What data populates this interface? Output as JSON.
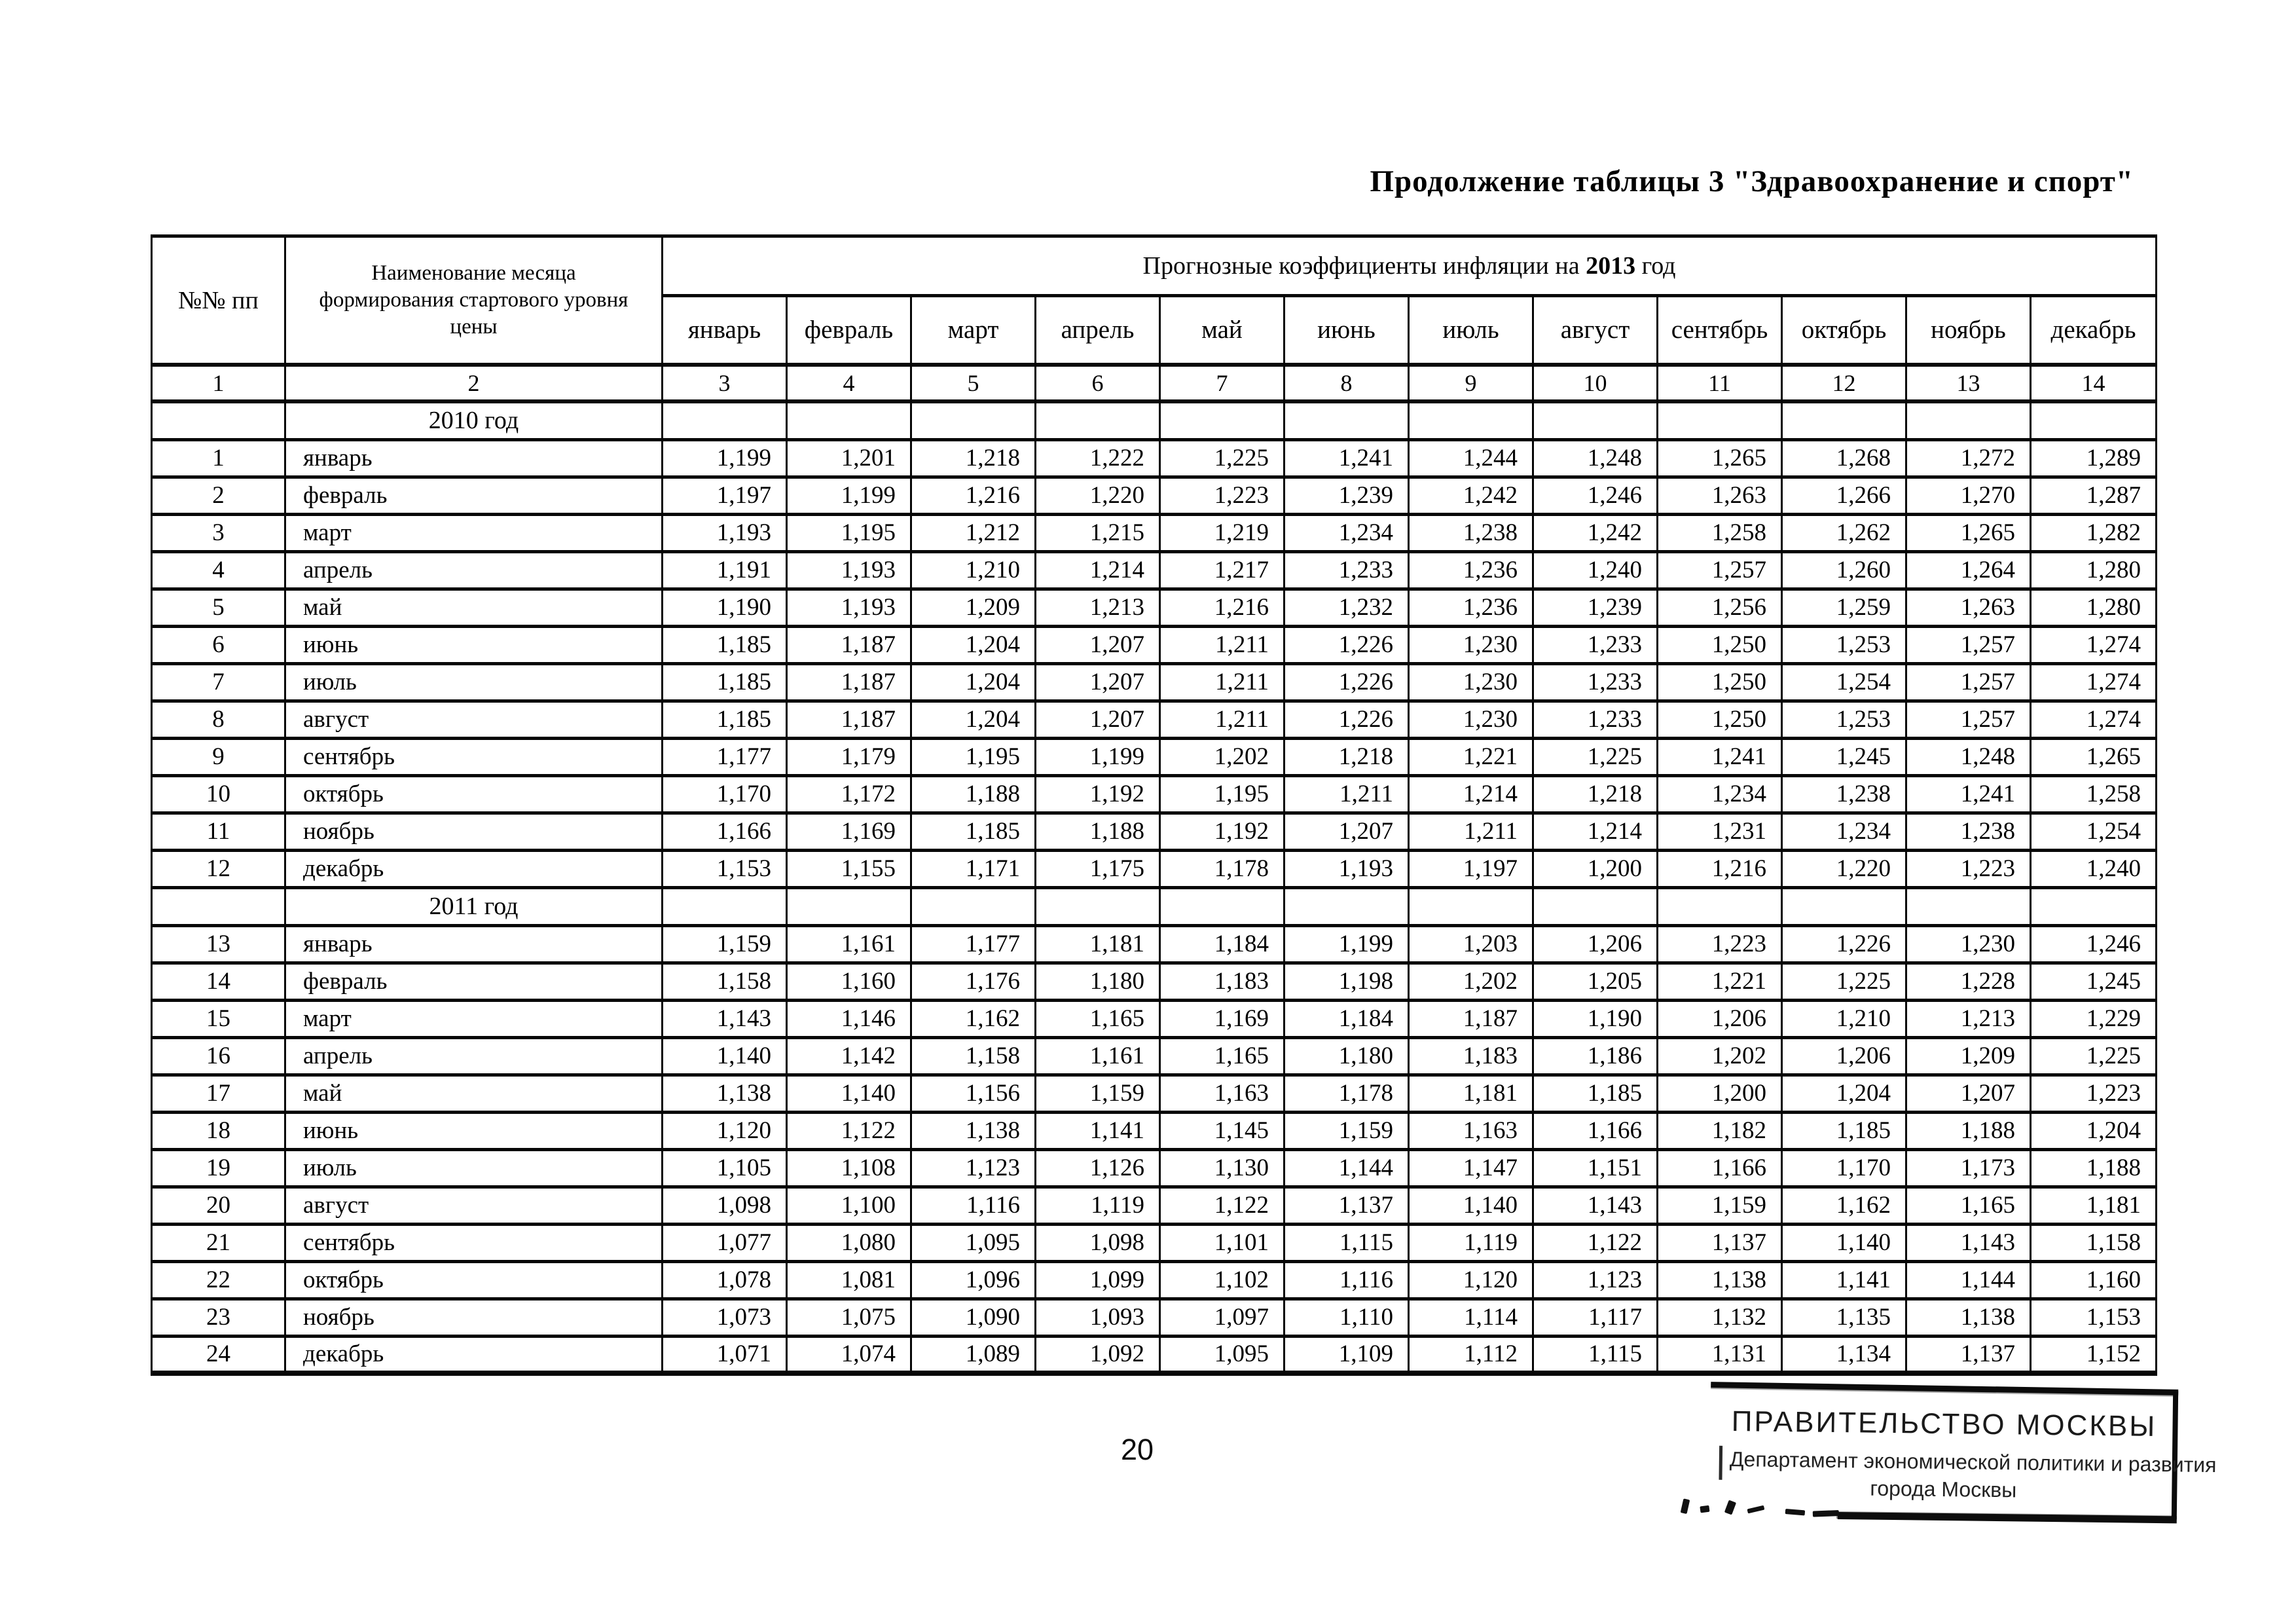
{
  "title": "Продолжение таблицы 3 \"Здравоохранение и спорт\"",
  "page_number": "20",
  "table": {
    "header": {
      "pp": "№№ пп",
      "month_name": "Наименование месяца формирования стартового уровня цены",
      "span_prefix": "Прогнозные коэффициенты инфляции на",
      "span_year": "2013",
      "span_suffix": "год",
      "months": [
        "январь",
        "февраль",
        "март",
        "апрель",
        "май",
        "июнь",
        "июль",
        "август",
        "сентябрь",
        "октябрь",
        "ноябрь",
        "декабрь"
      ],
      "column_numbers": [
        "1",
        "2",
        "3",
        "4",
        "5",
        "6",
        "7",
        "8",
        "9",
        "10",
        "11",
        "12",
        "13",
        "14"
      ]
    },
    "sections": [
      {
        "year_label": "2010 год",
        "rows": [
          {
            "num": "1",
            "month": "январь",
            "values": [
              "1,199",
              "1,201",
              "1,218",
              "1,222",
              "1,225",
              "1,241",
              "1,244",
              "1,248",
              "1,265",
              "1,268",
              "1,272",
              "1,289"
            ]
          },
          {
            "num": "2",
            "month": "февраль",
            "values": [
              "1,197",
              "1,199",
              "1,216",
              "1,220",
              "1,223",
              "1,239",
              "1,242",
              "1,246",
              "1,263",
              "1,266",
              "1,270",
              "1,287"
            ]
          },
          {
            "num": "3",
            "month": "март",
            "values": [
              "1,193",
              "1,195",
              "1,212",
              "1,215",
              "1,219",
              "1,234",
              "1,238",
              "1,242",
              "1,258",
              "1,262",
              "1,265",
              "1,282"
            ]
          },
          {
            "num": "4",
            "month": "апрель",
            "values": [
              "1,191",
              "1,193",
              "1,210",
              "1,214",
              "1,217",
              "1,233",
              "1,236",
              "1,240",
              "1,257",
              "1,260",
              "1,264",
              "1,280"
            ]
          },
          {
            "num": "5",
            "month": "май",
            "values": [
              "1,190",
              "1,193",
              "1,209",
              "1,213",
              "1,216",
              "1,232",
              "1,236",
              "1,239",
              "1,256",
              "1,259",
              "1,263",
              "1,280"
            ]
          },
          {
            "num": "6",
            "month": "июнь",
            "values": [
              "1,185",
              "1,187",
              "1,204",
              "1,207",
              "1,211",
              "1,226",
              "1,230",
              "1,233",
              "1,250",
              "1,253",
              "1,257",
              "1,274"
            ]
          },
          {
            "num": "7",
            "month": "июль",
            "values": [
              "1,185",
              "1,187",
              "1,204",
              "1,207",
              "1,211",
              "1,226",
              "1,230",
              "1,233",
              "1,250",
              "1,254",
              "1,257",
              "1,274"
            ]
          },
          {
            "num": "8",
            "month": "август",
            "values": [
              "1,185",
              "1,187",
              "1,204",
              "1,207",
              "1,211",
              "1,226",
              "1,230",
              "1,233",
              "1,250",
              "1,253",
              "1,257",
              "1,274"
            ]
          },
          {
            "num": "9",
            "month": "сентябрь",
            "values": [
              "1,177",
              "1,179",
              "1,195",
              "1,199",
              "1,202",
              "1,218",
              "1,221",
              "1,225",
              "1,241",
              "1,245",
              "1,248",
              "1,265"
            ]
          },
          {
            "num": "10",
            "month": "октябрь",
            "values": [
              "1,170",
              "1,172",
              "1,188",
              "1,192",
              "1,195",
              "1,211",
              "1,214",
              "1,218",
              "1,234",
              "1,238",
              "1,241",
              "1,258"
            ]
          },
          {
            "num": "11",
            "month": "ноябрь",
            "values": [
              "1,166",
              "1,169",
              "1,185",
              "1,188",
              "1,192",
              "1,207",
              "1,211",
              "1,214",
              "1,231",
              "1,234",
              "1,238",
              "1,254"
            ]
          },
          {
            "num": "12",
            "month": "декабрь",
            "values": [
              "1,153",
              "1,155",
              "1,171",
              "1,175",
              "1,178",
              "1,193",
              "1,197",
              "1,200",
              "1,216",
              "1,220",
              "1,223",
              "1,240"
            ]
          }
        ]
      },
      {
        "year_label": "2011 год",
        "rows": [
          {
            "num": "13",
            "month": "январь",
            "values": [
              "1,159",
              "1,161",
              "1,177",
              "1,181",
              "1,184",
              "1,199",
              "1,203",
              "1,206",
              "1,223",
              "1,226",
              "1,230",
              "1,246"
            ]
          },
          {
            "num": "14",
            "month": "февраль",
            "values": [
              "1,158",
              "1,160",
              "1,176",
              "1,180",
              "1,183",
              "1,198",
              "1,202",
              "1,205",
              "1,221",
              "1,225",
              "1,228",
              "1,245"
            ]
          },
          {
            "num": "15",
            "month": "март",
            "values": [
              "1,143",
              "1,146",
              "1,162",
              "1,165",
              "1,169",
              "1,184",
              "1,187",
              "1,190",
              "1,206",
              "1,210",
              "1,213",
              "1,229"
            ]
          },
          {
            "num": "16",
            "month": "апрель",
            "values": [
              "1,140",
              "1,142",
              "1,158",
              "1,161",
              "1,165",
              "1,180",
              "1,183",
              "1,186",
              "1,202",
              "1,206",
              "1,209",
              "1,225"
            ]
          },
          {
            "num": "17",
            "month": "май",
            "values": [
              "1,138",
              "1,140",
              "1,156",
              "1,159",
              "1,163",
              "1,178",
              "1,181",
              "1,185",
              "1,200",
              "1,204",
              "1,207",
              "1,223"
            ]
          },
          {
            "num": "18",
            "month": "июнь",
            "values": [
              "1,120",
              "1,122",
              "1,138",
              "1,141",
              "1,145",
              "1,159",
              "1,163",
              "1,166",
              "1,182",
              "1,185",
              "1,188",
              "1,204"
            ]
          },
          {
            "num": "19",
            "month": "июль",
            "values": [
              "1,105",
              "1,108",
              "1,123",
              "1,126",
              "1,130",
              "1,144",
              "1,147",
              "1,151",
              "1,166",
              "1,170",
              "1,173",
              "1,188"
            ]
          },
          {
            "num": "20",
            "month": "август",
            "values": [
              "1,098",
              "1,100",
              "1,116",
              "1,119",
              "1,122",
              "1,137",
              "1,140",
              "1,143",
              "1,159",
              "1,162",
              "1,165",
              "1,181"
            ]
          },
          {
            "num": "21",
            "month": "сентябрь",
            "values": [
              "1,077",
              "1,080",
              "1,095",
              "1,098",
              "1,101",
              "1,115",
              "1,119",
              "1,122",
              "1,137",
              "1,140",
              "1,143",
              "1,158"
            ]
          },
          {
            "num": "22",
            "month": "октябрь",
            "values": [
              "1,078",
              "1,081",
              "1,096",
              "1,099",
              "1,102",
              "1,116",
              "1,120",
              "1,123",
              "1,138",
              "1,141",
              "1,144",
              "1,160"
            ]
          },
          {
            "num": "23",
            "month": "ноябрь",
            "values": [
              "1,073",
              "1,075",
              "1,090",
              "1,093",
              "1,097",
              "1,110",
              "1,114",
              "1,117",
              "1,132",
              "1,135",
              "1,138",
              "1,153"
            ]
          },
          {
            "num": "24",
            "month": "декабрь",
            "values": [
              "1,071",
              "1,074",
              "1,089",
              "1,092",
              "1,095",
              "1,109",
              "1,112",
              "1,115",
              "1,131",
              "1,134",
              "1,137",
              "1,152"
            ]
          }
        ]
      }
    ]
  },
  "stamp": {
    "line1": "ПРАВИТЕЛЬСТВО МОСКВЫ",
    "line2": "Департамент экономической политики и развития",
    "line3": "города Москвы"
  }
}
